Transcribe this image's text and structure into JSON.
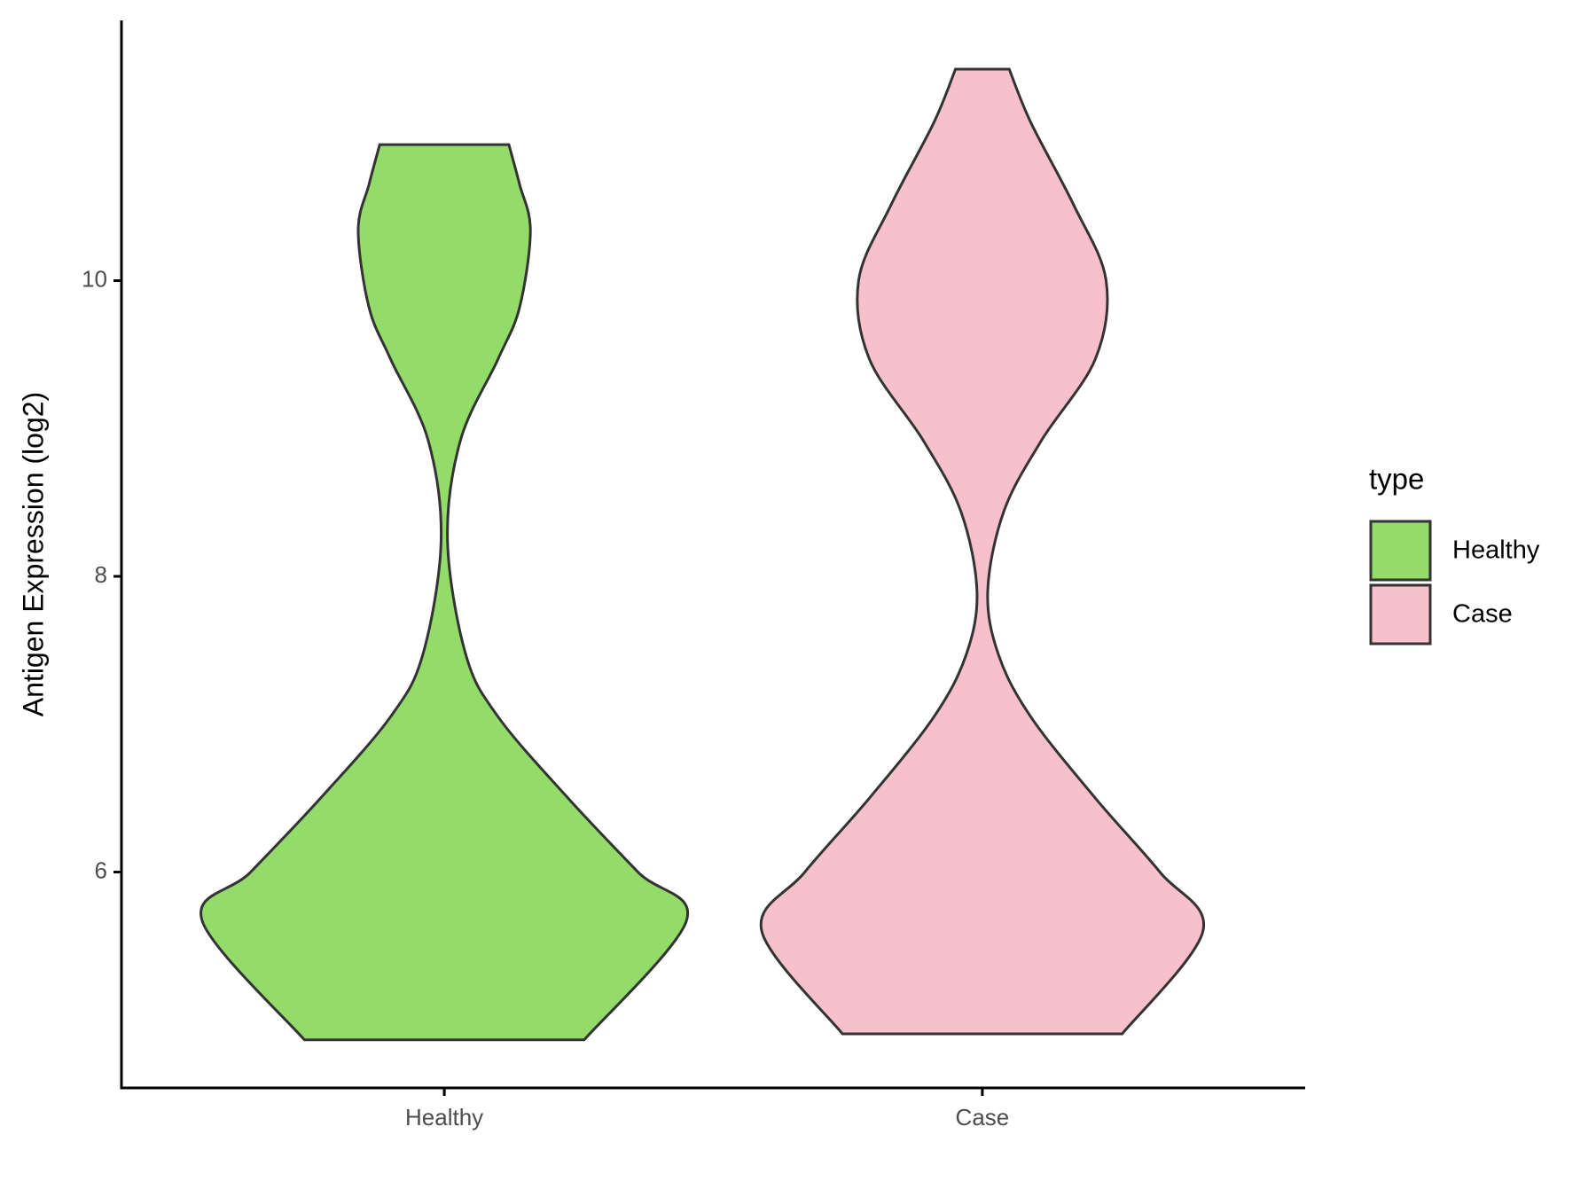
{
  "chart_data": {
    "type": "violin",
    "y_label": "Antigen Expression (log2)",
    "categories": [
      "Healthy",
      "Case"
    ],
    "legend_title": "type",
    "legend": "right",
    "ylim": [
      4.54,
      11.76
    ],
    "yticks": [
      6,
      8,
      10
    ],
    "series": [
      {
        "name": "Healthy",
        "color": "#93dc6a",
        "y": [
          4.865,
          5.67,
          6.0,
          6.5,
          7.05,
          7.47,
          8.24,
          8.92,
          9.47,
          9.82,
          10.34,
          10.65,
          10.92
        ],
        "width": [
          0.26,
          0.45,
          0.36,
          0.23,
          0.1,
          0.04,
          0.006,
          0.03,
          0.1,
          0.14,
          0.16,
          0.14,
          0.12
        ]
      },
      {
        "name": "Case",
        "color": "#f8c0cb",
        "y": [
          4.906,
          5.6,
          6.0,
          6.5,
          7.05,
          7.47,
          7.9,
          8.44,
          8.92,
          9.47,
          10.0,
          10.51,
          11.07,
          11.43
        ],
        "width": [
          0.26,
          0.41,
          0.33,
          0.21,
          0.09,
          0.03,
          0.01,
          0.04,
          0.11,
          0.21,
          0.23,
          0.17,
          0.09,
          0.05
        ]
      }
    ]
  }
}
